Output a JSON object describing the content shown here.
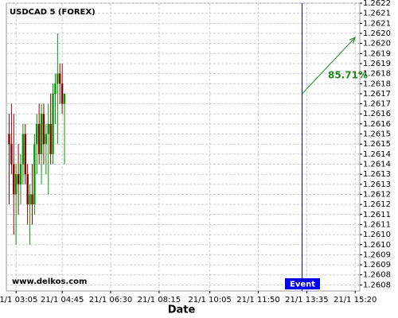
{
  "chart_data": {
    "type": "candlestick",
    "title": "USDCAD 5 (FOREX)",
    "x_label": "Date",
    "watermark": "www.delkos.com",
    "x": [
      "21/1 02:50",
      "21/1 02:55",
      "21/1 03:00",
      "21/1 03:05",
      "21/1 03:10",
      "21/1 03:15",
      "21/1 03:20",
      "21/1 03:25",
      "21/1 03:30",
      "21/1 03:35",
      "21/1 03:40",
      "21/1 03:45",
      "21/1 03:50",
      "21/1 03:55",
      "21/1 04:00",
      "21/1 04:05",
      "21/1 04:10",
      "21/1 04:15",
      "21/1 04:20",
      "21/1 04:25",
      "21/1 04:30",
      "21/1 04:35",
      "21/1 04:40",
      "21/1 04:45",
      "21/1 04:50"
    ],
    "open": [
      1.26155,
      1.2615,
      1.2614,
      1.26125,
      1.26135,
      1.2613,
      1.2614,
      1.26155,
      1.26135,
      1.2612,
      1.26125,
      1.2612,
      1.2615,
      1.2616,
      1.26145,
      1.26165,
      1.2615,
      1.26155,
      1.2616,
      1.26145,
      1.26175,
      1.2618,
      1.26185,
      1.2618,
      1.2617
    ],
    "high": [
      1.26165,
      1.2617,
      1.26165,
      1.2614,
      1.2615,
      1.26145,
      1.2616,
      1.2616,
      1.2614,
      1.2613,
      1.2614,
      1.26155,
      1.26165,
      1.2617,
      1.2617,
      1.2617,
      1.2616,
      1.2617,
      1.26175,
      1.2618,
      1.26185,
      1.26205,
      1.2619,
      1.2619,
      1.26175
    ],
    "low": [
      1.2612,
      1.26135,
      1.26105,
      1.261,
      1.26115,
      1.2612,
      1.2613,
      1.2613,
      1.2611,
      1.261,
      1.2611,
      1.26115,
      1.26135,
      1.2614,
      1.2613,
      1.2614,
      1.26135,
      1.26125,
      1.2614,
      1.2614,
      1.2616,
      1.2615,
      1.2617,
      1.26165,
      1.2614
    ],
    "close": [
      1.2615,
      1.2614,
      1.26125,
      1.26135,
      1.2613,
      1.2614,
      1.26155,
      1.26135,
      1.2612,
      1.26125,
      1.2612,
      1.2615,
      1.2616,
      1.26145,
      1.26165,
      1.2615,
      1.26155,
      1.2616,
      1.26145,
      1.26175,
      1.2618,
      1.26185,
      1.2618,
      1.2617,
      1.26175
    ],
    "up_color": "#009900",
    "down_color": "#8b0000",
    "xlim": [
      "21/1 02:44",
      "21/1 15:30"
    ],
    "xticks": [
      "21/1 03:05",
      "21/1 04:45",
      "21/1 06:30",
      "21/1 08:15",
      "21/1 10:05",
      "21/1 11:50",
      "21/1 13:35",
      "21/1 15:20"
    ],
    "ylim": [
      1.26077,
      1.2622
    ],
    "yticks": [
      1.2622,
      {
        "value": 1.26215,
        "label": "1.2621"
      },
      1.2621,
      {
        "value": 1.26205,
        "label": "1.2620"
      },
      {
        "value": 1.262,
        "label": "1.2620"
      },
      {
        "value": 1.26195,
        "label": "1.2619"
      },
      1.2619,
      {
        "value": 1.26185,
        "label": "1.2618"
      },
      1.2618,
      {
        "value": 1.26175,
        "label": "1.2617"
      },
      1.2617,
      {
        "value": 1.26165,
        "label": "1.2616"
      },
      1.2616,
      {
        "value": 1.26155,
        "label": "1.2615"
      },
      1.2615,
      {
        "value": 1.26145,
        "label": "1.2614"
      },
      1.2614,
      {
        "value": 1.26135,
        "label": "1.2613"
      },
      1.2613,
      {
        "value": 1.26125,
        "label": "1.2612"
      },
      1.2612,
      {
        "value": 1.26115,
        "label": "1.2611"
      },
      1.2611,
      {
        "value": 1.26105,
        "label": "1.2610"
      },
      {
        "value": 1.261,
        "label": "1.2610"
      },
      {
        "value": 1.26095,
        "label": "1.2609"
      },
      1.2609,
      {
        "value": 1.26085,
        "label": "1.2608"
      },
      1.2608
    ],
    "grid": true,
    "event": {
      "label": "Event",
      "x": "21/1 13:25",
      "color": "#0000ee"
    },
    "forecast": {
      "label": "85.71%",
      "x": [
        "21/1 13:25",
        "21/1 15:20"
      ],
      "values": [
        1.26175,
        1.26203
      ],
      "color": "#1a8a1a"
    }
  }
}
